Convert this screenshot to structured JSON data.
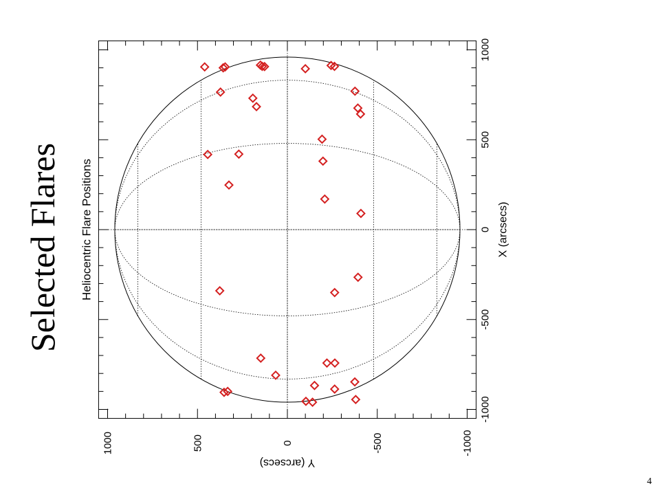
{
  "slide": {
    "title": "Selected Flares",
    "page_number": "4"
  },
  "chart_data": {
    "type": "scatter",
    "title": "Heliocentric Flare Positions",
    "xlabel": "X (arcsecs)",
    "ylabel": "Y (arcsecs)",
    "xlim": [
      -1050,
      1050
    ],
    "ylim": [
      -1050,
      1050
    ],
    "xticks": [
      -1000,
      -500,
      0,
      500,
      1000
    ],
    "yticks": [
      1000,
      500,
      0,
      -500,
      -1000
    ],
    "solar_radius": 960,
    "grid": "heliographic",
    "marker": "diamond",
    "marker_color": "#d42020",
    "points": [
      {
        "x": 905,
        "y": 460
      },
      {
        "x": 900,
        "y": 357
      },
      {
        "x": 905,
        "y": 346
      },
      {
        "x": 915,
        "y": 150
      },
      {
        "x": 908,
        "y": 140
      },
      {
        "x": 907,
        "y": 127
      },
      {
        "x": 895,
        "y": -100
      },
      {
        "x": 913,
        "y": -243
      },
      {
        "x": 908,
        "y": -262
      },
      {
        "x": 765,
        "y": 372
      },
      {
        "x": 731,
        "y": 192
      },
      {
        "x": 684,
        "y": 172
      },
      {
        "x": 770,
        "y": -376
      },
      {
        "x": 676,
        "y": -392
      },
      {
        "x": 643,
        "y": -407
      },
      {
        "x": 418,
        "y": 443
      },
      {
        "x": 420,
        "y": 270
      },
      {
        "x": 503,
        "y": -193
      },
      {
        "x": 381,
        "y": -198
      },
      {
        "x": 248,
        "y": 325
      },
      {
        "x": 170,
        "y": -208
      },
      {
        "x": 90,
        "y": -409
      },
      {
        "x": -265,
        "y": -393
      },
      {
        "x": -340,
        "y": 376
      },
      {
        "x": -350,
        "y": -263
      },
      {
        "x": -715,
        "y": 148
      },
      {
        "x": -742,
        "y": -220
      },
      {
        "x": -742,
        "y": -264
      },
      {
        "x": -810,
        "y": 65
      },
      {
        "x": -847,
        "y": -375
      },
      {
        "x": -867,
        "y": -151
      },
      {
        "x": -887,
        "y": -263
      },
      {
        "x": -900,
        "y": 332
      },
      {
        "x": -905,
        "y": 352
      },
      {
        "x": -945,
        "y": -380
      },
      {
        "x": -955,
        "y": -103
      },
      {
        "x": -960,
        "y": -140
      }
    ]
  }
}
